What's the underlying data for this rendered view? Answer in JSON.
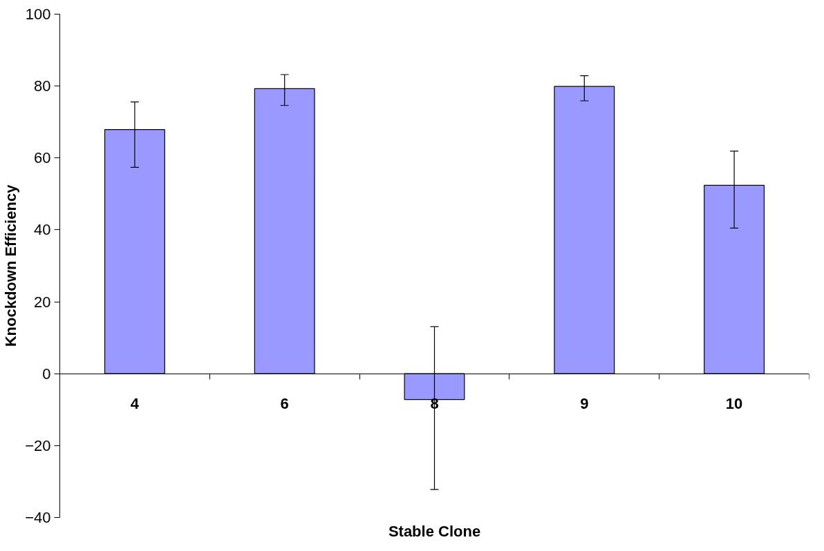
{
  "chart_data": {
    "type": "bar",
    "xlabel": "Stable Clone",
    "ylabel": "Knockdown Efficiency",
    "categories": [
      "4",
      "6",
      "8",
      "9",
      "10"
    ],
    "values": [
      67.9,
      79.3,
      -7.2,
      79.9,
      52.4
    ],
    "errors": [
      [
        57.4,
        75.6
      ],
      [
        74.6,
        83.2
      ],
      [
        -32.2,
        13.1
      ],
      [
        75.9,
        82.9
      ],
      [
        40.5,
        61.9
      ]
    ],
    "color": "#9999ff",
    "ylim": [
      -40,
      100
    ],
    "yticks": [
      -40,
      -20,
      0,
      20,
      40,
      60,
      80,
      100
    ],
    "grid": false
  }
}
